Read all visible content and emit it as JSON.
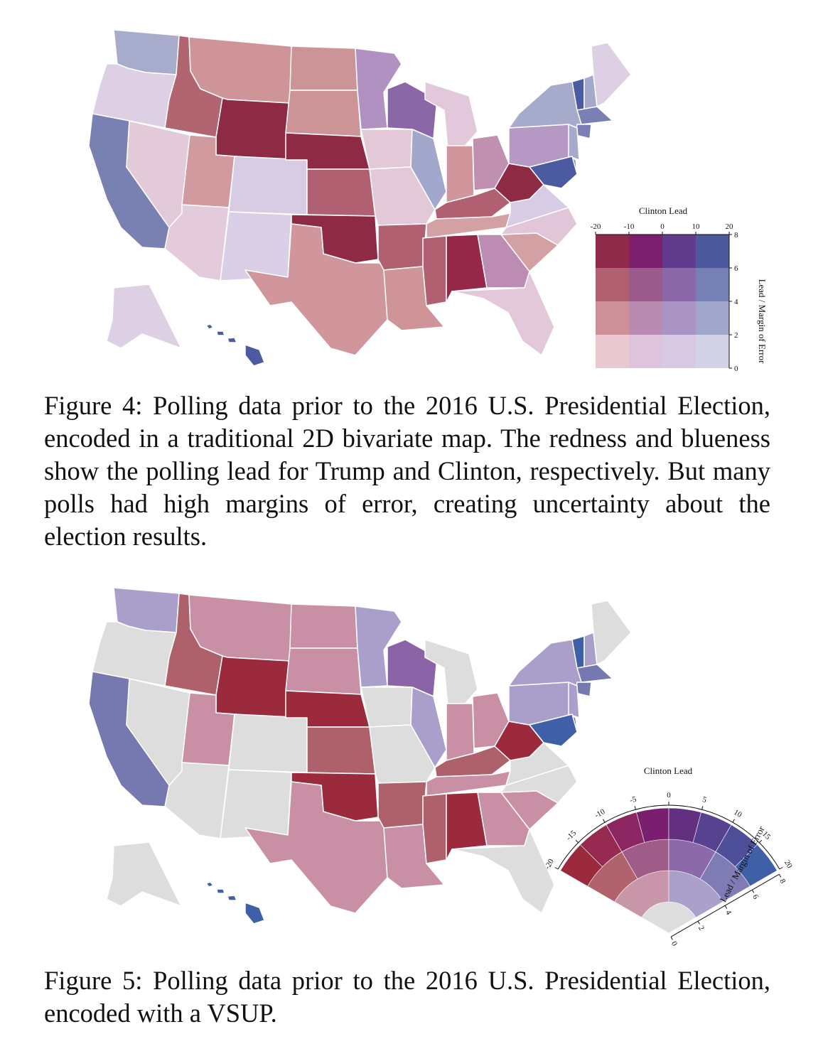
{
  "figure4": {
    "legend": {
      "title": "Clinton Lead",
      "ylabel": "Lead / Margin of Error",
      "x_ticks": [
        "-20",
        "-10",
        "0",
        "10",
        "20"
      ],
      "y_ticks": [
        "0",
        "2",
        "4",
        "6",
        "8"
      ],
      "cells": [
        [
          "#8f2a4a",
          "#7c1f6d",
          "#613b8c",
          "#4c5a9d"
        ],
        [
          "#b06070",
          "#9a5a8c",
          "#8a68a8",
          "#7780b4"
        ],
        [
          "#cd9098",
          "#b88cb0",
          "#aa94c4",
          "#a2a7cc"
        ],
        [
          "#e9c9cf",
          "#ddc4dc",
          "#d7c9e2",
          "#d3d3e7"
        ]
      ]
    },
    "caption": "Figure 4: Polling data prior to the 2016 U.S. Presidential Election, encoded in a traditional 2D bivariate map. The redness and blueness show the polling lead for Trump and Clinton, respectively. But many polls had high margins of error, creating uncertainty about the election results.",
    "colors": {
      "WA": "#a7abcc",
      "OR": "#ddd0e4",
      "CA": "#7980b2",
      "NV": "#e3cad9",
      "ID": "#b06570",
      "MT": "#cf9498",
      "WY": "#8e2a44",
      "UT": "#d19a9e",
      "AZ": "#e4cbdb",
      "CO": "#d8cce4",
      "NM": "#d9d0e7",
      "ND": "#cd9498",
      "SD": "#cd9498",
      "NE": "#8e2a44",
      "KS": "#b06070",
      "OK": "#8e2a44",
      "TX": "#d0969b",
      "MN": "#b191c1",
      "IA": "#e3c8d8",
      "MO": "#e3c8d8",
      "AR": "#b06070",
      "LA": "#cf9498",
      "WI": "#8a68a8",
      "IL": "#a2a7cc",
      "MI": "#e2c8da",
      "IN": "#d0969b",
      "OH": "#c090b0",
      "KY": "#b06070",
      "TN": "#d3a0a4",
      "MS": "#b06070",
      "AL": "#952848",
      "GA": "#bc8cb2",
      "FL": "#e3c8da",
      "SC": "#d3a0a4",
      "NC": "#e1c6da",
      "VA": "#d8cce4",
      "WV": "#8e2a44",
      "PA": "#b598c4",
      "NY": "#a6aacb",
      "VT": "#4c5aa0",
      "NH": "#a5aacc",
      "ME": "#ddd0e4",
      "MA": "#7a80b4",
      "CT": "#7a80b4",
      "NJ": "#a6aacb",
      "DE": "#7a80b4",
      "MD": "#4c5aa0",
      "AK": "#ddd0e4",
      "HI": "#4c5aa0"
    }
  },
  "figure5": {
    "legend": {
      "title": "Clinton Lead",
      "ylabel": "Lead / Margin of Error",
      "x_ticks": [
        "-20",
        "-15",
        "-10",
        "-5",
        "0",
        "5",
        "10",
        "15",
        "20"
      ],
      "y_ticks": [
        "0",
        "2",
        "4",
        "6",
        "8"
      ],
      "ring8": [
        "#9b2a3d",
        "#962a50",
        "#8c2663",
        "#7a1f6f",
        "#62307f",
        "#574290",
        "#4d4f99",
        "#3f5fa6"
      ],
      "ring4": [
        "#b0636c",
        "#a05c88",
        "#8c6aaa",
        "#7f7bb5"
      ],
      "ring2": [
        "#c796a9",
        "#aaa0c9"
      ],
      "ring1": [
        "#dddddd"
      ]
    },
    "caption": "Figure 5: Polling data prior to the 2016 U.S. Presidential Election, encoded with a VSUP.",
    "colors": {
      "WA": "#aa9fcb",
      "OR": "#dddddd",
      "CA": "#7679b0",
      "NV": "#dddddd",
      "ID": "#ae616a",
      "MT": "#c88fa5",
      "WY": "#9b2a3d",
      "UT": "#c88fa5",
      "AZ": "#dddddd",
      "CO": "#dddddd",
      "NM": "#dddddd",
      "ND": "#c88fa5",
      "SD": "#c88fa5",
      "NE": "#9b2a3d",
      "KS": "#ae616a",
      "OK": "#9b2a3d",
      "TX": "#c88fa5",
      "MN": "#aa9fcb",
      "IA": "#dddddd",
      "MO": "#dddddd",
      "AR": "#ae616a",
      "LA": "#c88fa5",
      "WI": "#8a64a6",
      "IL": "#aa9fcb",
      "MI": "#dddddd",
      "IN": "#c88fa5",
      "OH": "#c88fa5",
      "KY": "#ae616a",
      "TN": "#c88fa5",
      "MS": "#ae616a",
      "AL": "#9b2a3d",
      "GA": "#c88fa5",
      "FL": "#dddddd",
      "SC": "#c88fa5",
      "NC": "#dddddd",
      "VA": "#dddddd",
      "WV": "#9b2a3d",
      "PA": "#aa9fcb",
      "NY": "#aa9fcb",
      "VT": "#3f5fa6",
      "NH": "#aa9fcb",
      "ME": "#dddddd",
      "MA": "#7679b0",
      "CT": "#7679b0",
      "NJ": "#aa9fcb",
      "DE": "#7679b0",
      "MD": "#3f5fa6",
      "AK": "#dddddd",
      "HI": "#3f5fa6"
    }
  }
}
